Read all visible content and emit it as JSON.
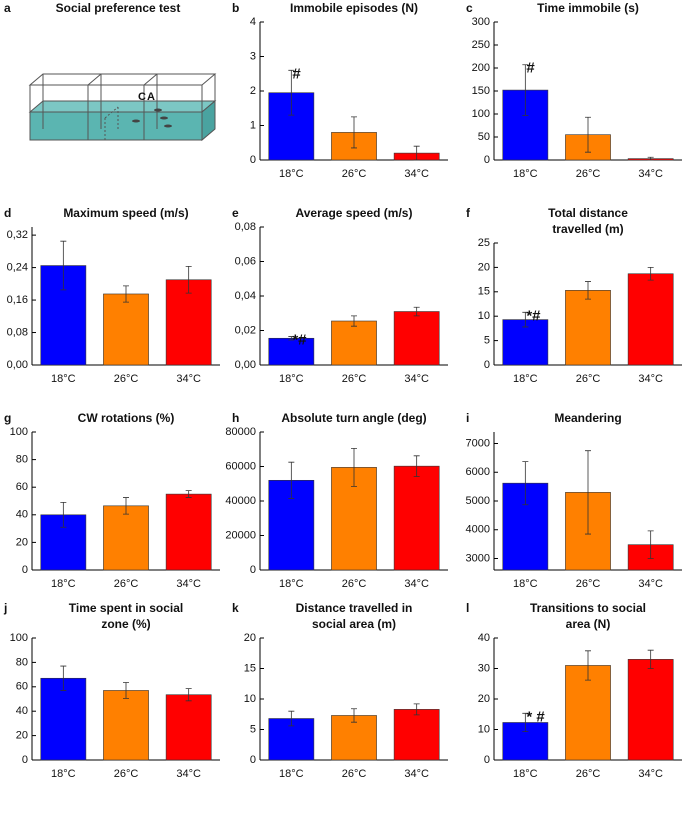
{
  "chart_data": [
    {
      "type": "diagram",
      "panel": "a",
      "title": "Social preference test",
      "labels": [
        "C",
        "A"
      ]
    },
    {
      "type": "bar",
      "panel": "b",
      "title": "Immobile episodes (N)",
      "categories": [
        "18°C",
        "26°C",
        "34°C"
      ],
      "values": [
        1.95,
        0.8,
        0.2
      ],
      "errors": [
        0.65,
        0.45,
        0.2
      ],
      "annotations": [
        "#",
        null,
        null
      ],
      "colors": [
        "#0000ff",
        "#ff8000",
        "#ff0000"
      ],
      "ylim": [
        0,
        4
      ],
      "yticks": [
        0,
        1,
        2,
        3,
        4
      ]
    },
    {
      "type": "bar",
      "panel": "c",
      "title": "Time immobile (s)",
      "categories": [
        "18°C",
        "26°C",
        "34°C"
      ],
      "values": [
        152,
        55,
        3
      ],
      "errors": [
        55,
        38,
        3
      ],
      "annotations": [
        "#",
        null,
        null
      ],
      "colors": [
        "#0000ff",
        "#ff8000",
        "#ff0000"
      ],
      "ylim": [
        0,
        300
      ],
      "yticks": [
        0,
        50,
        100,
        150,
        200,
        250,
        300
      ]
    },
    {
      "type": "bar",
      "panel": "d",
      "title": "Maximum speed (m/s)",
      "categories": [
        "18°C",
        "26°C",
        "34°C"
      ],
      "values": [
        0.245,
        0.175,
        0.21
      ],
      "errors": [
        0.06,
        0.02,
        0.033
      ],
      "annotations": [
        null,
        null,
        null
      ],
      "colors": [
        "#0000ff",
        "#ff8000",
        "#ff0000"
      ],
      "ylim": [
        0,
        0.34
      ],
      "yticks": [
        {
          "value": 0,
          "label": "0,00"
        },
        {
          "value": 0.08,
          "label": "0,08"
        },
        {
          "value": 0.16,
          "label": "0,16"
        },
        {
          "value": 0.24,
          "label": "0,24"
        },
        {
          "value": 0.32,
          "label": "0,32"
        }
      ]
    },
    {
      "type": "bar",
      "panel": "e",
      "title": "Average speed (m/s)",
      "categories": [
        "18°C",
        "26°C",
        "34°C"
      ],
      "values": [
        0.0155,
        0.0255,
        0.031
      ],
      "errors": [
        0.001,
        0.003,
        0.0025
      ],
      "annotations": [
        "*#",
        null,
        null
      ],
      "colors": [
        "#0000ff",
        "#ff8000",
        "#ff0000"
      ],
      "ylim": [
        0,
        0.08
      ],
      "yticks": [
        {
          "value": 0,
          "label": "0,00"
        },
        {
          "value": 0.02,
          "label": "0,02"
        },
        {
          "value": 0.04,
          "label": "0,04"
        },
        {
          "value": 0.06,
          "label": "0,06"
        },
        {
          "value": 0.08,
          "label": "0,08"
        }
      ]
    },
    {
      "type": "bar",
      "panel": "f",
      "title": [
        "Total distance",
        "travelled (m)"
      ],
      "categories": [
        "18°C",
        "26°C",
        "34°C"
      ],
      "values": [
        9.3,
        15.3,
        18.7
      ],
      "errors": [
        1.5,
        1.8,
        1.3
      ],
      "annotations": [
        "*#",
        null,
        null
      ],
      "colors": [
        "#0000ff",
        "#ff8000",
        "#ff0000"
      ],
      "ylim": [
        0,
        25
      ],
      "yticks": [
        0,
        5,
        10,
        15,
        20,
        25
      ]
    },
    {
      "type": "bar",
      "panel": "g",
      "title": "CW rotations (%)",
      "categories": [
        "18°C",
        "26°C",
        "34°C"
      ],
      "values": [
        40,
        46.5,
        55
      ],
      "errors": [
        9,
        6,
        2.5
      ],
      "annotations": [
        null,
        null,
        null
      ],
      "colors": [
        "#0000ff",
        "#ff8000",
        "#ff0000"
      ],
      "ylim": [
        0,
        100
      ],
      "yticks": [
        0,
        20,
        40,
        60,
        80,
        100
      ]
    },
    {
      "type": "bar",
      "panel": "h",
      "title": "Absolute turn angle (deg)",
      "categories": [
        "18°C",
        "26°C",
        "34°C"
      ],
      "values": [
        52000,
        59500,
        60200
      ],
      "errors": [
        10500,
        11000,
        6000
      ],
      "annotations": [
        null,
        null,
        null
      ],
      "colors": [
        "#0000ff",
        "#ff8000",
        "#ff0000"
      ],
      "ylim": [
        0,
        80000
      ],
      "yticks": [
        0,
        20000,
        40000,
        60000,
        80000
      ]
    },
    {
      "type": "bar",
      "panel": "i",
      "title": "Meandering",
      "categories": [
        "18°C",
        "26°C",
        "34°C"
      ],
      "values": [
        5620,
        5300,
        3480
      ],
      "errors": [
        750,
        1450,
        480
      ],
      "annotations": [
        null,
        null,
        null
      ],
      "colors": [
        "#0000ff",
        "#ff8000",
        "#ff0000"
      ],
      "ylim": [
        2600,
        7400
      ],
      "yticks": [
        3000,
        4000,
        5000,
        6000,
        7000
      ]
    },
    {
      "type": "bar",
      "panel": "j",
      "title": [
        "Time spent in social",
        "zone (%)"
      ],
      "categories": [
        "18°C",
        "26°C",
        "34°C"
      ],
      "values": [
        67,
        57,
        53.5
      ],
      "errors": [
        10,
        6.5,
        5
      ],
      "annotations": [
        null,
        null,
        null
      ],
      "colors": [
        "#0000ff",
        "#ff8000",
        "#ff0000"
      ],
      "ylim": [
        0,
        100
      ],
      "yticks": [
        0,
        20,
        40,
        60,
        80,
        100
      ]
    },
    {
      "type": "bar",
      "panel": "k",
      "title": [
        "Distance travelled in",
        "social area (m)"
      ],
      "categories": [
        "18°C",
        "26°C",
        "34°C"
      ],
      "values": [
        6.8,
        7.3,
        8.3
      ],
      "errors": [
        1.2,
        1.1,
        0.9
      ],
      "annotations": [
        null,
        null,
        null
      ],
      "colors": [
        "#0000ff",
        "#ff8000",
        "#ff0000"
      ],
      "ylim": [
        0,
        20
      ],
      "yticks": [
        0,
        5,
        10,
        15,
        20
      ]
    },
    {
      "type": "bar",
      "panel": "l",
      "title": [
        "Transitions to social",
        "area (N)"
      ],
      "categories": [
        "18°C",
        "26°C",
        "34°C"
      ],
      "values": [
        12.3,
        31,
        33
      ],
      "errors": [
        3,
        4.8,
        3
      ],
      "annotations": [
        "* #",
        null,
        null
      ],
      "colors": [
        "#0000ff",
        "#ff8000",
        "#ff0000"
      ],
      "ylim": [
        0,
        40
      ],
      "yticks": [
        0,
        10,
        20,
        30,
        40
      ]
    }
  ]
}
